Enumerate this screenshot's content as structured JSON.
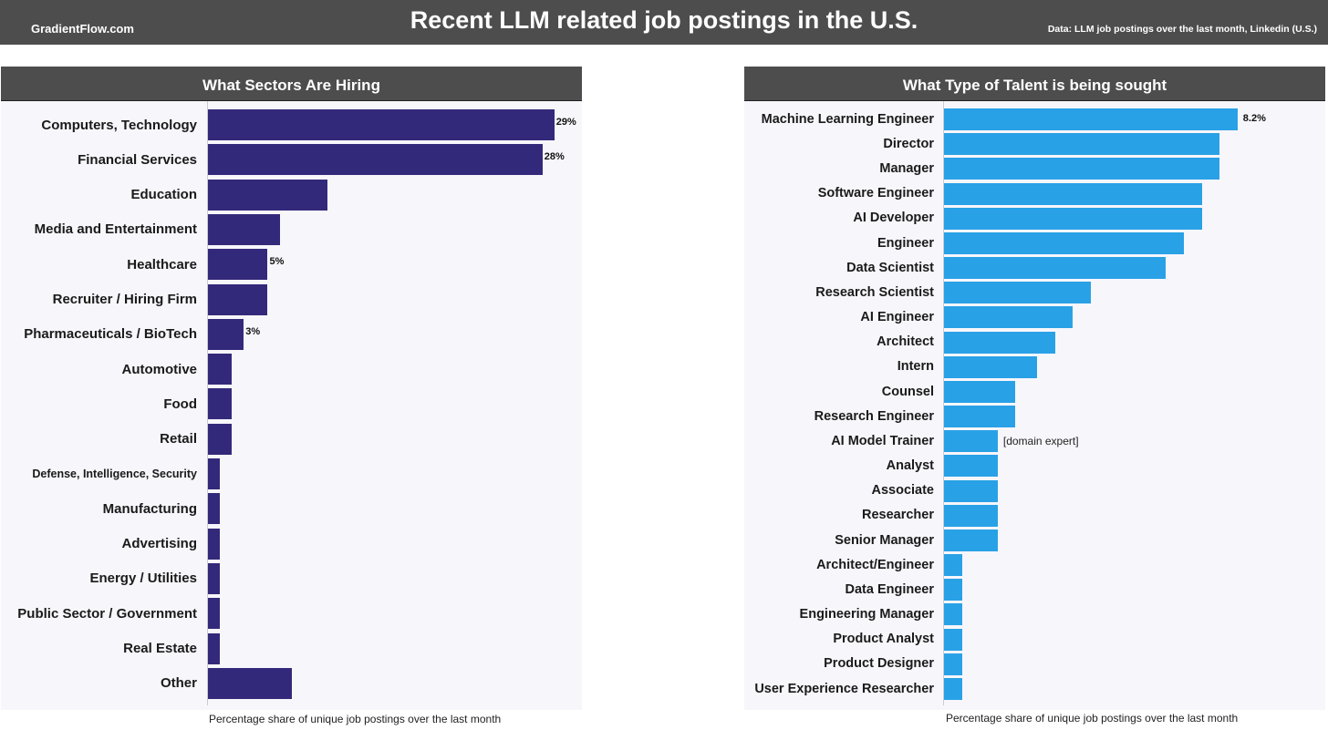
{
  "header": {
    "site": "GradientFlow.com",
    "title": "Recent LLM related job postings in the U.S.",
    "source": "Data: LLM job postings over the last month, Linkedin (U.S.)"
  },
  "colors": {
    "sectors_bar": "#33297a",
    "talent_bar": "#29a1e6",
    "header_bg": "#4d4d4d"
  },
  "chart_data": [
    {
      "type": "bar",
      "orientation": "horizontal",
      "title": "What Sectors Are Hiring",
      "xlabel": "Percentage share of unique job postings over the last month",
      "categories": [
        "Computers, Technology",
        "Financial Services",
        "Education",
        "Media and Entertainment",
        "Healthcare",
        "Recruiter / Hiring Firm",
        "Pharmaceuticals / BioTech",
        "Automotive",
        "Food",
        "Retail",
        "Defense, Intelligence, Security",
        "Manufacturing",
        "Advertising",
        "Energy / Utilities",
        "Public Sector / Government",
        "Real Estate",
        "Other"
      ],
      "values": [
        29,
        28,
        10,
        6,
        5,
        5,
        3,
        2,
        2,
        2,
        1,
        1,
        1,
        1,
        1,
        1,
        7
      ],
      "value_labels": [
        "29%",
        "28%",
        "",
        "",
        "5%",
        "",
        "3%",
        "",
        "",
        "",
        "",
        "",
        "",
        "",
        "",
        "",
        ""
      ],
      "xlim": [
        0,
        31
      ]
    },
    {
      "type": "bar",
      "orientation": "horizontal",
      "title": "What Type of Talent is being sought",
      "xlabel": "Percentage share of unique job postings over the last month",
      "categories": [
        "Machine Learning Engineer",
        "Director",
        "Manager",
        "Software Engineer",
        "AI Developer",
        "Engineer",
        "Data Scientist",
        "Research Scientist",
        "AI Engineer",
        "Architect",
        "Intern",
        "Counsel",
        "Research Engineer",
        "AI Model Trainer",
        "Analyst",
        "Associate",
        "Researcher",
        "Senior Manager",
        "Architect/Engineer",
        "Data Engineer",
        "Engineering Manager",
        "Product Analyst",
        "Product Designer",
        "User Experience Researcher"
      ],
      "values": [
        8.2,
        7.7,
        7.7,
        7.2,
        7.2,
        6.7,
        6.2,
        4.1,
        3.6,
        3.1,
        2.6,
        2.0,
        2.0,
        1.5,
        1.5,
        1.5,
        1.5,
        1.5,
        0.5,
        0.5,
        0.5,
        0.5,
        0.5,
        0.5
      ],
      "value_labels": [
        "8.2%",
        "",
        "",
        "",
        "",
        "",
        "",
        "",
        "",
        "",
        "",
        "",
        "",
        "",
        "",
        "",
        "",
        "",
        "",
        "",
        "",
        "",
        "",
        ""
      ],
      "annotations": [
        {
          "category": "AI Model Trainer",
          "text": "[domain expert]"
        }
      ],
      "xlim": [
        0,
        10.6
      ]
    }
  ]
}
